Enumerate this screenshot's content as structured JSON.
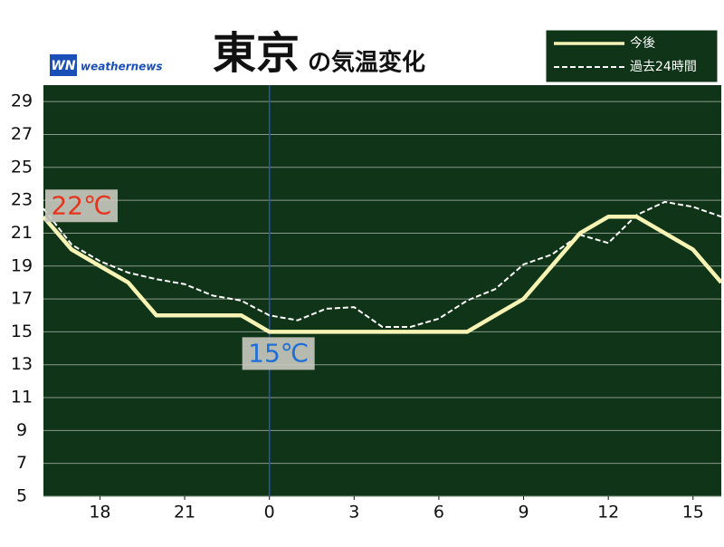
{
  "chart_data": {
    "type": "line",
    "title_main": "東京",
    "title_sub": "の気温変化",
    "logo": "weathernews",
    "x": [
      16,
      17,
      18,
      19,
      20,
      21,
      22,
      23,
      24,
      25,
      26,
      27,
      28,
      29,
      30,
      31,
      32,
      33,
      34,
      35,
      36,
      37,
      38,
      39,
      40
    ],
    "series": [
      {
        "name": "今後",
        "color": "#f7f3b4",
        "dash": false,
        "values": [
          22,
          20,
          19,
          18,
          16,
          16,
          16,
          16,
          15,
          15,
          15,
          15,
          15,
          15,
          15,
          15,
          16,
          17,
          19,
          21,
          22,
          22,
          21,
          20,
          18
        ]
      },
      {
        "name": "過去24時間",
        "color": "#ffffff",
        "dash": true,
        "values": [
          22.5,
          20.3,
          19.3,
          18.6,
          18.2,
          17.9,
          17.2,
          16.9,
          16,
          15.7,
          16.4,
          16.5,
          15.3,
          15.3,
          15.8,
          16.9,
          17.6,
          19.1,
          19.7,
          20.9,
          20.4,
          22.1,
          22.9,
          22.6,
          22
        ]
      }
    ],
    "annotations": [
      {
        "text": "22℃",
        "x": 16,
        "y": 22,
        "color": "#e8331c"
      },
      {
        "text": "15℃",
        "x": 24,
        "y": 15,
        "color": "#1f6fd6"
      }
    ],
    "xlim": [
      16,
      40
    ],
    "xticks": [
      {
        "value": 18,
        "label": "18"
      },
      {
        "value": 21,
        "label": "21"
      },
      {
        "value": 24,
        "label": "0"
      },
      {
        "value": 27,
        "label": "3"
      },
      {
        "value": 30,
        "label": "6"
      },
      {
        "value": 33,
        "label": "9"
      },
      {
        "value": 36,
        "label": "12"
      },
      {
        "value": 39,
        "label": "15"
      }
    ],
    "ylim": [
      5,
      30
    ],
    "yticks": [
      5,
      7,
      9,
      11,
      13,
      15,
      17,
      19,
      21,
      23,
      25,
      27,
      29
    ],
    "grid": true,
    "legend": "upper right",
    "background": "#0f3417"
  }
}
